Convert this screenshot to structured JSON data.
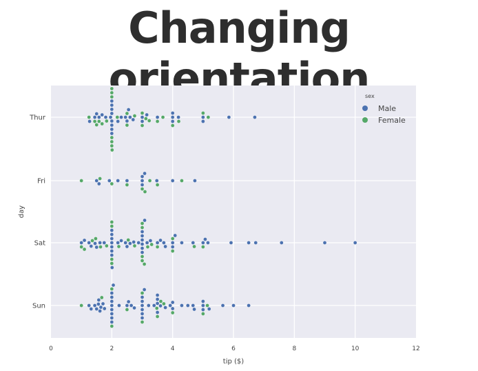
{
  "slide": {
    "title": "Changing orientation"
  },
  "chart_data": {
    "type": "scatter",
    "subtype": "swarm",
    "orientation": "horizontal",
    "xlabel": "tip ($)",
    "ylabel": "day",
    "xlim": [
      0,
      12
    ],
    "xticks": [
      0,
      2,
      4,
      6,
      8,
      10,
      12
    ],
    "categories": [
      "Thur",
      "Fri",
      "Sat",
      "Sun"
    ],
    "grid": true,
    "background": "#eaeaf2",
    "legend": {
      "title": "sex",
      "position": "top-right",
      "entries": [
        {
          "name": "Male",
          "color": "#4c72b0"
        },
        {
          "name": "Female",
          "color": "#55a868"
        }
      ]
    },
    "series": [
      {
        "name": "Male",
        "color": "#4c72b0",
        "points": {
          "Thur": [
            1.27,
            1.44,
            1.5,
            1.58,
            1.68,
            1.8,
            1.96,
            2.0,
            2.0,
            2.0,
            2.0,
            2.0,
            2.0,
            2.0,
            2.0,
            2.2,
            2.31,
            2.45,
            2.5,
            2.55,
            2.6,
            2.7,
            3.0,
            3.0,
            3.15,
            3.5,
            4.0,
            4.0,
            4.0,
            4.19,
            5.0,
            5.0,
            5.85,
            6.7
          ],
          "Fri": [
            1.5,
            1.58,
            1.92,
            2.2,
            2.5,
            3.0,
            3.0,
            3.0,
            3.08,
            3.48,
            4.0,
            4.73
          ],
          "Sat": [
            1.0,
            1.1,
            1.25,
            1.32,
            1.45,
            1.5,
            1.61,
            1.75,
            2.0,
            2.0,
            2.0,
            2.0,
            2.0,
            2.0,
            2.0,
            2.01,
            2.2,
            2.31,
            2.45,
            2.5,
            2.6,
            2.72,
            2.88,
            3.0,
            3.0,
            3.0,
            3.0,
            3.0,
            3.0,
            3.08,
            3.16,
            3.27,
            3.5,
            3.6,
            3.71,
            3.76,
            4.0,
            4.0,
            4.08,
            4.3,
            4.67,
            5.0,
            5.07,
            5.16,
            5.92,
            6.5,
            6.73,
            7.58,
            9.0,
            10.0
          ],
          "Sun": [
            1.25,
            1.32,
            1.44,
            1.5,
            1.56,
            1.57,
            1.61,
            1.64,
            1.71,
            1.76,
            2.0,
            2.0,
            2.0,
            2.0,
            2.0,
            2.0,
            2.0,
            2.0,
            2.05,
            2.24,
            2.5,
            2.55,
            2.64,
            2.74,
            3.0,
            3.0,
            3.0,
            3.0,
            3.0,
            3.0,
            3.07,
            3.21,
            3.39,
            3.5,
            3.5,
            3.5,
            3.5,
            3.6,
            3.76,
            3.92,
            4.0,
            4.0,
            4.3,
            4.5,
            4.67,
            4.71,
            5.0,
            5.0,
            5.0,
            5.2,
            5.65,
            6.0,
            6.5
          ]
        }
      },
      {
        "name": "Female",
        "color": "#55a868",
        "points": {
          "Thur": [
            1.25,
            1.44,
            1.5,
            1.58,
            1.68,
            1.83,
            2.0,
            2.0,
            2.0,
            2.0,
            2.0,
            2.0,
            2.01,
            2.18,
            2.5,
            2.5,
            2.75,
            3.0,
            3.0,
            3.12,
            3.23,
            3.5,
            3.68,
            4.0,
            4.2,
            5.0,
            5.17
          ],
          "Fri": [
            1.0,
            1.61,
            2.0,
            2.5,
            3.0,
            3.09,
            3.25,
            3.5,
            4.3
          ],
          "Sat": [
            1.0,
            1.1,
            1.36,
            1.47,
            1.63,
            1.83,
            2.0,
            2.0,
            2.0,
            2.0,
            2.23,
            2.54,
            2.75,
            3.0,
            3.0,
            3.0,
            3.0,
            3.07,
            3.18,
            3.31,
            3.5,
            4.0,
            4.0,
            4.71,
            5.0
          ],
          "Sun": [
            1.0,
            1.67,
            2.0,
            2.0,
            2.5,
            3.0,
            3.0,
            3.48,
            3.5,
            3.61,
            3.71,
            4.0,
            5.0,
            5.14
          ]
        }
      }
    ]
  }
}
